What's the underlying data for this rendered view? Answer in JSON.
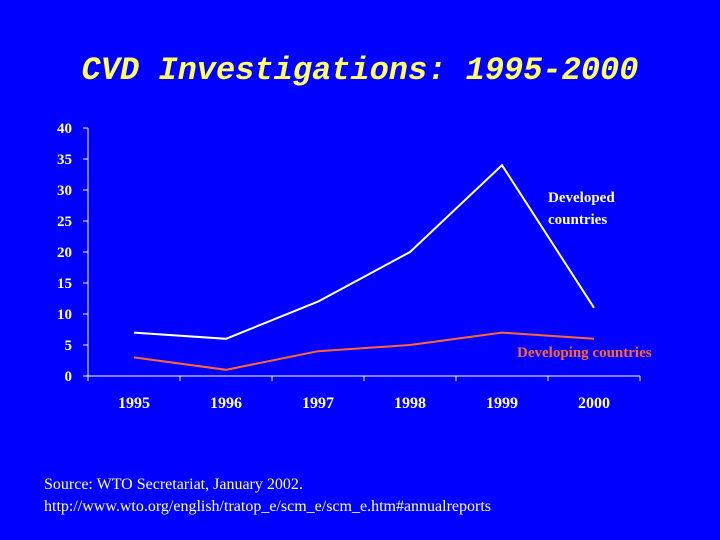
{
  "slide": {
    "title": "CVD Investigations: 1995-2000",
    "source_line1": "Source: WTO Secretariat, January 2002.",
    "source_line2": "http://www.wto.org/english/tratop_e/scm_e/scm_e.htm#annualreports"
  },
  "colors": {
    "background": "#0000ff",
    "title": "#ffff66",
    "developed": "#ffffff",
    "developing": "#ff6633",
    "axis": "#ffffff"
  },
  "chart_data": {
    "type": "line",
    "title": "",
    "xlabel": "",
    "ylabel": "",
    "categories": [
      "1995",
      "1996",
      "1997",
      "1998",
      "1999",
      "2000"
    ],
    "ylim": [
      0,
      40
    ],
    "yticks": [
      0,
      5,
      10,
      15,
      20,
      25,
      30,
      35,
      40
    ],
    "grid": false,
    "series": [
      {
        "name": "Developed countries",
        "label_lines": [
          "Developed",
          "countries"
        ],
        "values": [
          7,
          6,
          12,
          20,
          34,
          11
        ]
      },
      {
        "name": "Developing countries",
        "label_lines": [
          "Developing countries"
        ],
        "values": [
          3,
          1,
          4,
          5,
          7,
          6
        ]
      }
    ]
  }
}
